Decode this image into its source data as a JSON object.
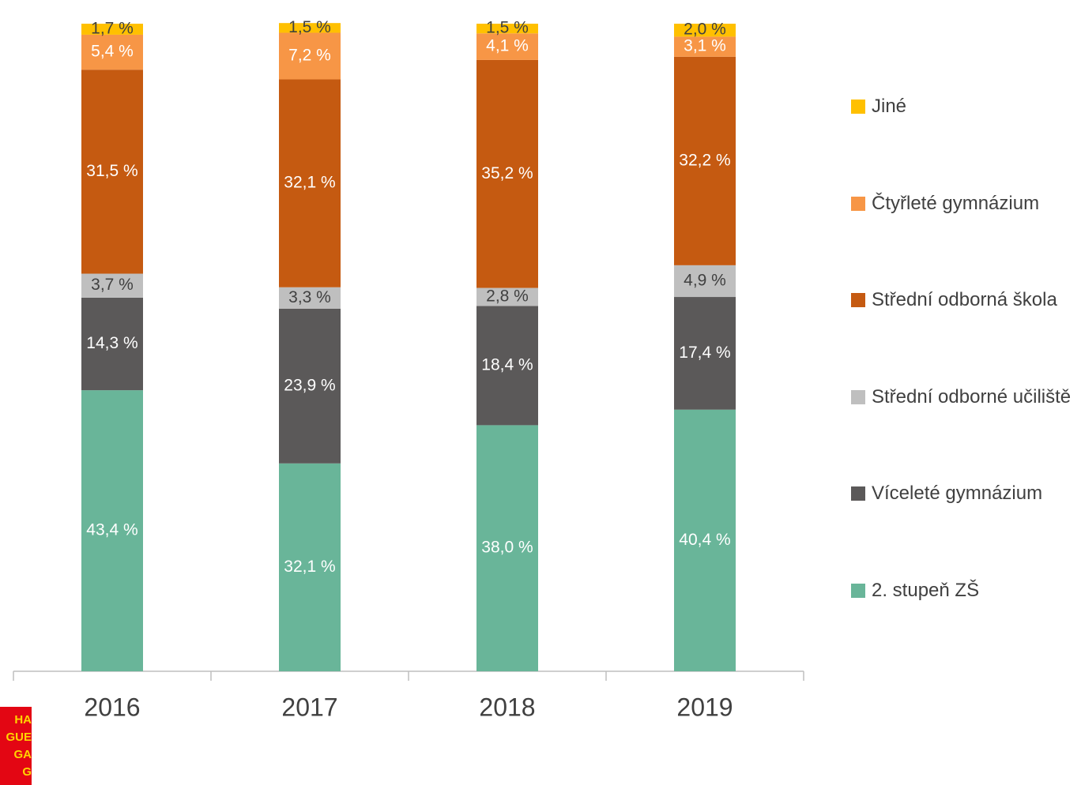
{
  "chart_data": {
    "type": "stacked_bar",
    "categories": [
      "2016",
      "2017",
      "2018",
      "2019"
    ],
    "ylim": [
      0,
      100
    ],
    "series": [
      {
        "name": "2. stupeň ZŠ",
        "color": "#69b599",
        "values": [
          43.4,
          32.1,
          38.0,
          40.4
        ],
        "value_labels": [
          "43,4 %",
          "32,1 %",
          "38,0 %",
          "40,4 %"
        ]
      },
      {
        "name": "Víceleté gymnázium",
        "color": "#5b5959",
        "values": [
          14.3,
          23.9,
          18.4,
          17.4
        ],
        "value_labels": [
          "14,3 %",
          "23,9 %",
          "18,4 %",
          "17,4 %"
        ]
      },
      {
        "name": "Střední odborné učiliště",
        "color": "#bfbfbf",
        "values": [
          3.7,
          3.3,
          2.8,
          4.9
        ],
        "value_labels": [
          "3,7 %",
          "3,3 %",
          "2,8 %",
          "4,9 %"
        ]
      },
      {
        "name": "Střední odborná škola",
        "color": "#c55a11",
        "values": [
          31.5,
          32.1,
          35.2,
          32.2
        ],
        "value_labels": [
          "31,5 %",
          "32,1 %",
          "35,2 %",
          "32,2 %"
        ]
      },
      {
        "name": "Čtyřleté gymnázium",
        "color": "#f79646",
        "values": [
          5.4,
          7.2,
          4.1,
          3.1
        ],
        "value_labels": [
          "5,4 %",
          "7,2 %",
          "4,1 %",
          "3,1 %"
        ]
      },
      {
        "name": "Jiné",
        "color": "#ffc000",
        "values": [
          1.7,
          1.5,
          1.5,
          2.0
        ],
        "value_labels": [
          "1,7 %",
          "1,5 %",
          "1,5 %",
          "2,0 %"
        ]
      }
    ],
    "legend": "right"
  },
  "logo": [
    "HA",
    "GUE",
    "GA",
    "G"
  ]
}
